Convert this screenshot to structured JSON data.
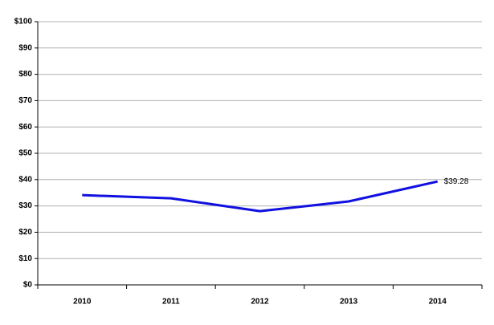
{
  "chart_data": {
    "type": "line",
    "categories": [
      "2010",
      "2011",
      "2012",
      "2013",
      "2014"
    ],
    "values": [
      34.1,
      32.9,
      28.0,
      31.7,
      39.28
    ],
    "value_labels": [
      null,
      null,
      null,
      null,
      "$39.28"
    ],
    "color": "#1010e0",
    "ylim": [
      0,
      100
    ],
    "yticks": [
      {
        "value": 0,
        "label": "$0"
      },
      {
        "value": 10,
        "label": "$10"
      },
      {
        "value": 20,
        "label": "$20"
      },
      {
        "value": 30,
        "label": "$30"
      },
      {
        "value": 40,
        "label": "$40"
      },
      {
        "value": 50,
        "label": "$50"
      },
      {
        "value": 60,
        "label": "$60"
      },
      {
        "value": 70,
        "label": "$70"
      },
      {
        "value": 80,
        "label": "$80"
      },
      {
        "value": 90,
        "label": "$90"
      },
      {
        "value": 100,
        "label": "$100"
      }
    ],
    "grid": true
  }
}
